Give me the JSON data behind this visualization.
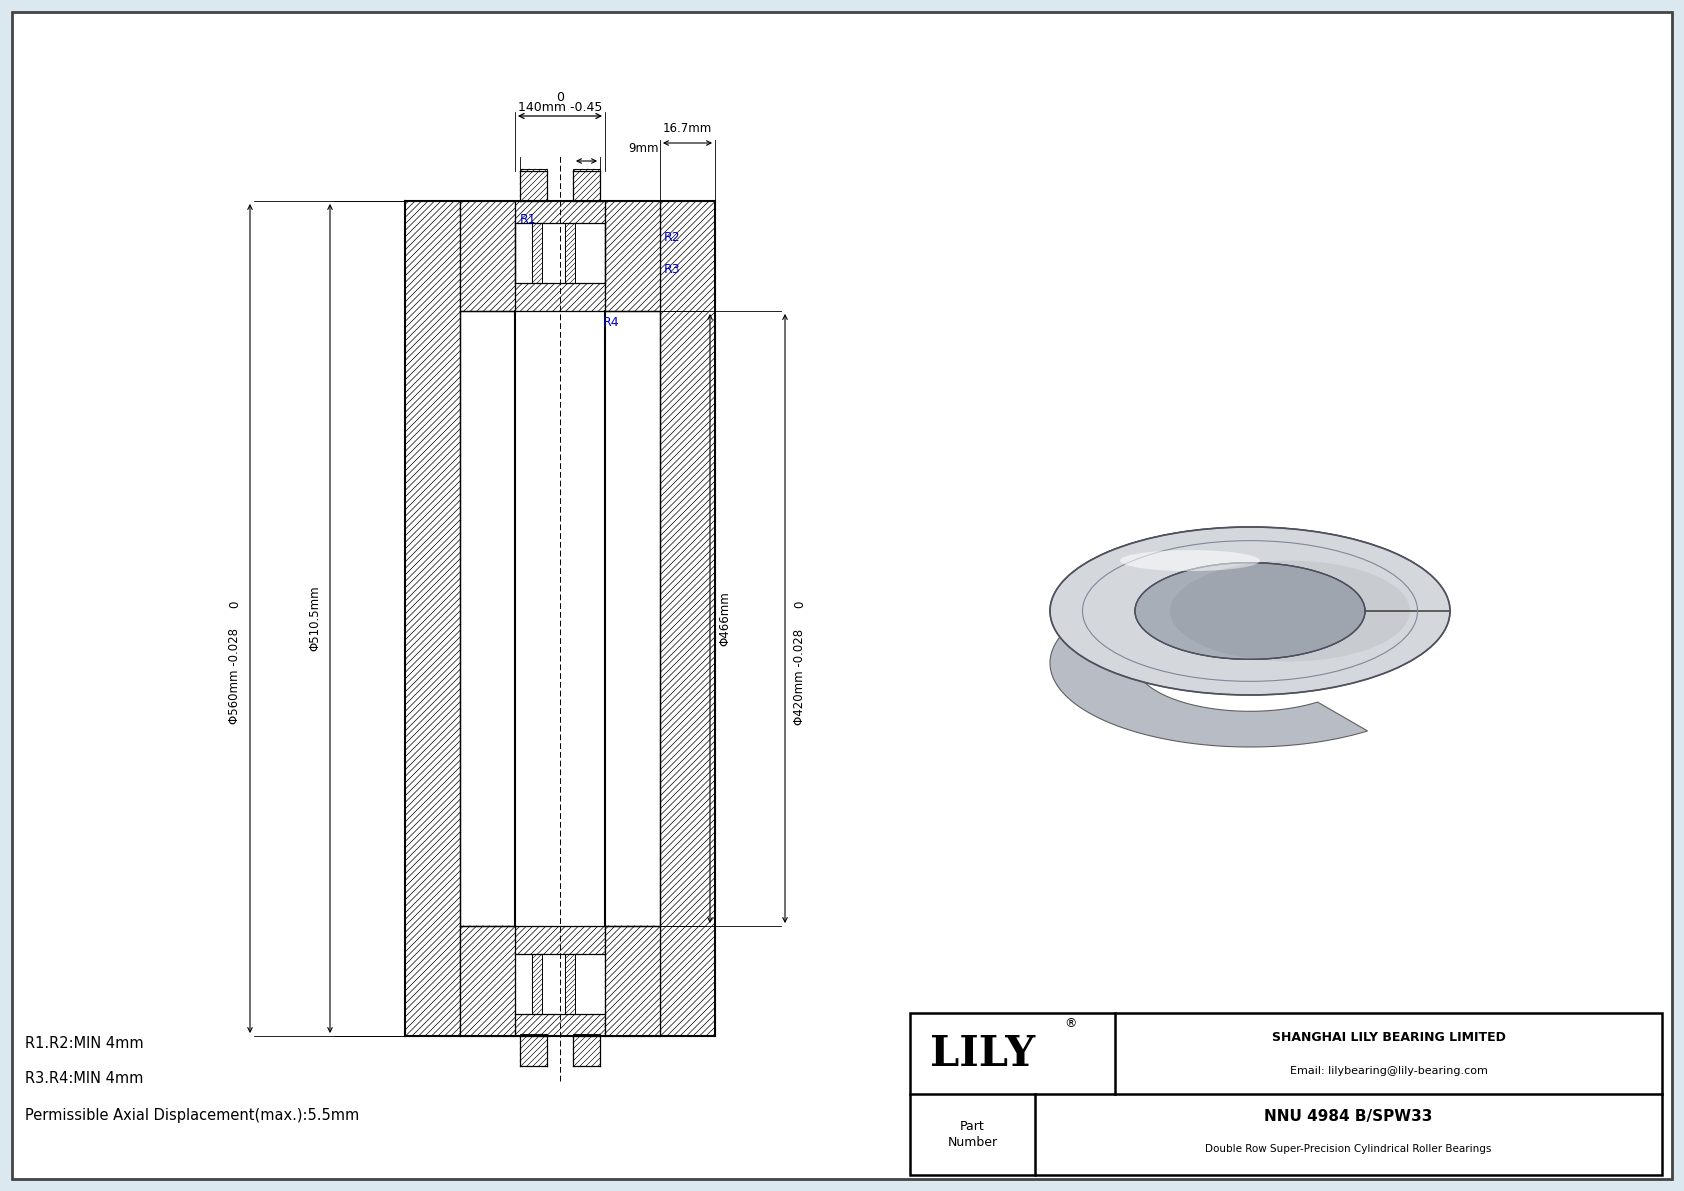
{
  "bg_color": "#dce8f0",
  "title_block": {
    "company": "SHANGHAI LILY BEARING LIMITED",
    "email": "Email: lilybearing@lily-bearing.com",
    "part_label": "Part\nNumber",
    "part_number": "NNU 4984 B/SPW33",
    "part_desc": "Double Row Super-Precision Cylindrical Roller Bearings",
    "logo": "LILY"
  },
  "dim_top0": "0",
  "dim_top1": "140mm -0.45",
  "dim_top2": "16.7mm",
  "dim_top3": "9mm",
  "dim_left0": "0",
  "dim_left1": "Φ560mm -0.028",
  "dim_left2": "Φ510.5mm",
  "dim_right0": "0",
  "dim_right1": "Φ420mm -0.028",
  "dim_right2": "Φ466mm",
  "r_labels": [
    "R1",
    "R2",
    "R3",
    "R4"
  ],
  "r_color": "#0000CC",
  "notes": [
    "R1.R2:MIN 4mm",
    "R3.R4:MIN 4mm",
    "Permissible Axial Displacement(max.):5.5mm"
  ]
}
